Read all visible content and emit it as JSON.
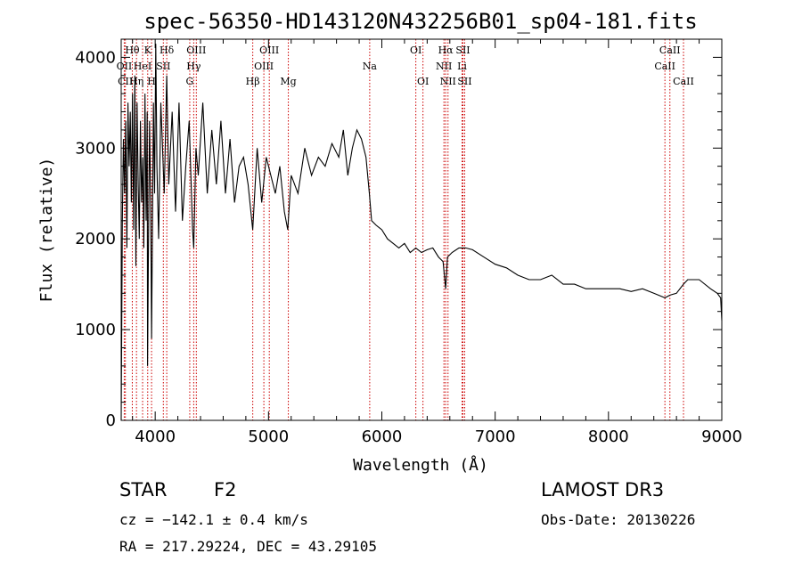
{
  "chart_data": {
    "type": "line",
    "title": "spec-56350-HD143120N432256B01_sp04-181.fits",
    "xlabel": "Wavelength (Å)",
    "ylabel": "Flux (relative)",
    "xlim": [
      3700,
      9000
    ],
    "ylim": [
      0,
      4200
    ],
    "xticks": [
      4000,
      5000,
      6000,
      7000,
      8000,
      9000
    ],
    "yticks": [
      0,
      1000,
      2000,
      3000,
      4000
    ],
    "series": [
      {
        "name": "spectrum",
        "x": [
          3700,
          3710,
          3720,
          3730,
          3740,
          3750,
          3760,
          3770,
          3780,
          3790,
          3800,
          3810,
          3820,
          3830,
          3840,
          3850,
          3860,
          3870,
          3880,
          3890,
          3900,
          3910,
          3920,
          3930,
          3933,
          3940,
          3950,
          3960,
          3968,
          3975,
          3985,
          3995,
          4005,
          4015,
          4030,
          4050,
          4080,
          4102,
          4120,
          4150,
          4180,
          4210,
          4240,
          4270,
          4300,
          4330,
          4340,
          4360,
          4380,
          4420,
          4460,
          4500,
          4540,
          4580,
          4620,
          4660,
          4700,
          4740,
          4780,
          4820,
          4861,
          4900,
          4940,
          4980,
          5020,
          5060,
          5100,
          5140,
          5170,
          5200,
          5260,
          5320,
          5380,
          5440,
          5500,
          5560,
          5620,
          5660,
          5700,
          5740,
          5780,
          5820,
          5860,
          5890,
          5910,
          5950,
          6000,
          6050,
          6100,
          6150,
          6200,
          6250,
          6300,
          6350,
          6400,
          6450,
          6500,
          6540,
          6563,
          6580,
          6620,
          6680,
          6740,
          6800,
          6900,
          7000,
          7100,
          7200,
          7300,
          7400,
          7500,
          7600,
          7700,
          7800,
          7900,
          8000,
          8100,
          8200,
          8300,
          8400,
          8498,
          8542,
          8600,
          8662,
          8700,
          8800,
          8900,
          8960,
          8990,
          9000
        ],
        "values": [
          0,
          2200,
          3100,
          2500,
          3300,
          1900,
          3500,
          2800,
          3400,
          2400,
          3600,
          2100,
          3800,
          1700,
          3500,
          2600,
          2000,
          3300,
          2400,
          2900,
          1900,
          3600,
          2200,
          3400,
          600,
          1800,
          3300,
          2400,
          900,
          2000,
          3500,
          2500,
          4150,
          2800,
          2000,
          3500,
          2500,
          3800,
          2600,
          3400,
          2300,
          3500,
          2200,
          2800,
          3300,
          2100,
          1900,
          3000,
          2700,
          3500,
          2500,
          3200,
          2600,
          3300,
          2500,
          3100,
          2400,
          2800,
          2900,
          2600,
          2100,
          3000,
          2400,
          2900,
          2700,
          2500,
          2800,
          2300,
          2100,
          2700,
          2500,
          3000,
          2700,
          2900,
          2800,
          3050,
          2900,
          3200,
          2700,
          3000,
          3200,
          3100,
          2900,
          2500,
          2200,
          2150,
          2100,
          2000,
          1950,
          1900,
          1950,
          1850,
          1900,
          1850,
          1880,
          1900,
          1800,
          1750,
          1450,
          1800,
          1850,
          1900,
          1900,
          1880,
          1800,
          1720,
          1680,
          1600,
          1550,
          1550,
          1600,
          1500,
          1500,
          1450,
          1450,
          1450,
          1450,
          1420,
          1450,
          1400,
          1350,
          1380,
          1400,
          1500,
          1550,
          1550,
          1450,
          1400,
          1350,
          1100
        ]
      }
    ],
    "spectral_lines": [
      {
        "label": "Hθ",
        "x": 3798,
        "row": 0
      },
      {
        "label": "OII",
        "x": 3727,
        "row": 1
      },
      {
        "label": "CII",
        "x": 3737,
        "row": 2
      },
      {
        "label": "Hη",
        "x": 3835,
        "row": 2
      },
      {
        "label": "K",
        "x": 3934,
        "row": 0
      },
      {
        "label": "HeI",
        "x": 3889,
        "row": 1
      },
      {
        "label": "H",
        "x": 3968,
        "row": 2
      },
      {
        "label": "Hδ",
        "x": 4102,
        "row": 0
      },
      {
        "label": "SII",
        "x": 4072,
        "row": 1
      },
      {
        "label": "OIII",
        "x": 4363,
        "row": 0
      },
      {
        "label": "Hγ",
        "x": 4340,
        "row": 1
      },
      {
        "label": "G",
        "x": 4305,
        "row": 2
      },
      {
        "label": "Hβ",
        "x": 4861,
        "row": 2
      },
      {
        "label": "OIII",
        "x": 5007,
        "row": 0
      },
      {
        "label": "OIII",
        "x": 4959,
        "row": 1
      },
      {
        "label": "Mg",
        "x": 5175,
        "row": 2
      },
      {
        "label": "Na",
        "x": 5893,
        "row": 1
      },
      {
        "label": "OI",
        "x": 6300,
        "row": 0
      },
      {
        "label": "OI",
        "x": 6363,
        "row": 2
      },
      {
        "label": "Hα",
        "x": 6563,
        "row": 0
      },
      {
        "label": "NII",
        "x": 6548,
        "row": 1
      },
      {
        "label": "NII",
        "x": 6584,
        "row": 2
      },
      {
        "label": "SII",
        "x": 6716,
        "row": 0
      },
      {
        "label": "Li",
        "x": 6708,
        "row": 1
      },
      {
        "label": "SII",
        "x": 6731,
        "row": 2
      },
      {
        "label": "CaII",
        "x": 8542,
        "row": 0
      },
      {
        "label": "CaII",
        "x": 8498,
        "row": 1
      },
      {
        "label": "CaII",
        "x": 8662,
        "row": 2
      }
    ]
  },
  "info": {
    "object_type": "STAR",
    "subclass": "F2",
    "survey": "LAMOST DR3",
    "cz": "cz = −142.1 ± 0.4 km/s",
    "obs_date": "Obs-Date: 20130226",
    "coords": "RA = 217.29224, DEC =  43.29105"
  },
  "colors": {
    "line": "#000000",
    "marker": "#cc0000"
  }
}
